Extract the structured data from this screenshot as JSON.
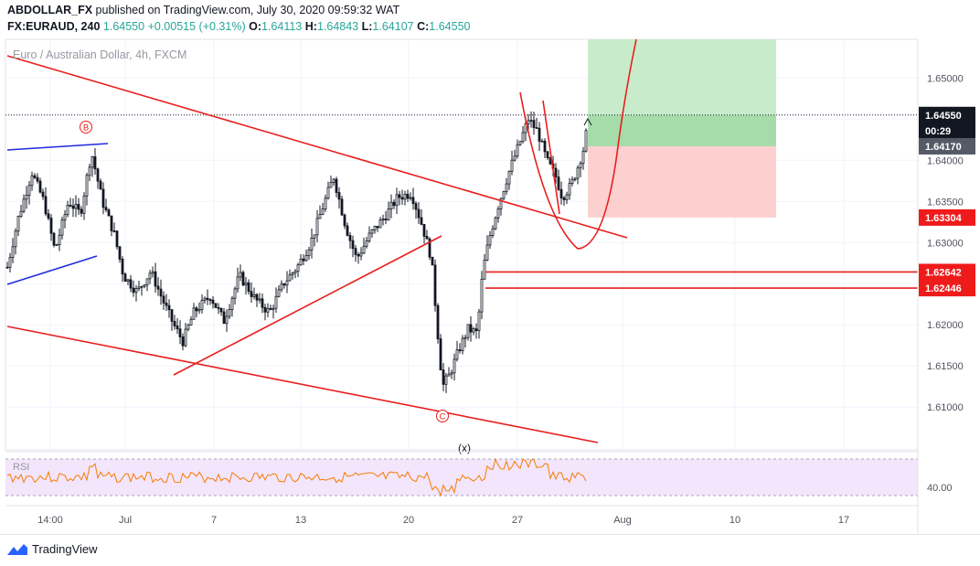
{
  "header": {
    "author": "ABDOLLAR_FX",
    "published_text": "published on TradingView.com, July 30, 2020 09:59:32 WAT",
    "symbol": "FX:EURAUD, 240",
    "last": "1.64550",
    "change": "+0.00515 (+0.31%)",
    "o_label": "O:",
    "o": "1.64113",
    "h_label": "H:",
    "h": "1.64843",
    "l_label": "L:",
    "l": "1.64107",
    "c_label": "C:",
    "c": "1.64550"
  },
  "footer": {
    "brand": "TradingView"
  },
  "icons": [
    "tradingview-logo-icon"
  ],
  "chart_data": {
    "type": "candlestick",
    "title": "Euro / Australian Dollar, 4h, FXCM",
    "ylim": [
      1.6048,
      1.6547
    ],
    "y_ticks": [
      "1.65000",
      "1.64500",
      "1.64000",
      "1.63500",
      "1.63000",
      "1.62500",
      "1.62000",
      "1.61500",
      "1.61000"
    ],
    "x_ticks": [
      "14:00",
      "Jul",
      "7",
      "13",
      "20",
      "27",
      "Aug",
      "10",
      "17"
    ],
    "price_labels": [
      {
        "text": "1.64550",
        "kind": "last",
        "value": 1.6455
      },
      {
        "text": "00:29",
        "kind": "countdown",
        "value": 1.6436
      },
      {
        "text": "1.64170",
        "kind": "target",
        "value": 1.6417
      },
      {
        "text": "1.63304",
        "kind": "level",
        "value": 1.63304
      },
      {
        "text": "1.62642",
        "kind": "level",
        "value": 1.62642
      },
      {
        "text": "1.62446",
        "kind": "level",
        "value": 1.62446
      }
    ],
    "annotations": [
      "B",
      "C",
      "(x)"
    ],
    "rsi": {
      "label": "RSI",
      "level_label": "40.00"
    },
    "colors": {
      "up": "#26a69a",
      "down": "#ef5350",
      "candle": "#131722",
      "line_red": "#e91e1e",
      "line_blue": "#1e2be0",
      "rsi": "#f57c00",
      "rsi_band": "#f3e5fc",
      "profit": "#c8eccb",
      "loss": "#fdd0d0"
    }
  }
}
